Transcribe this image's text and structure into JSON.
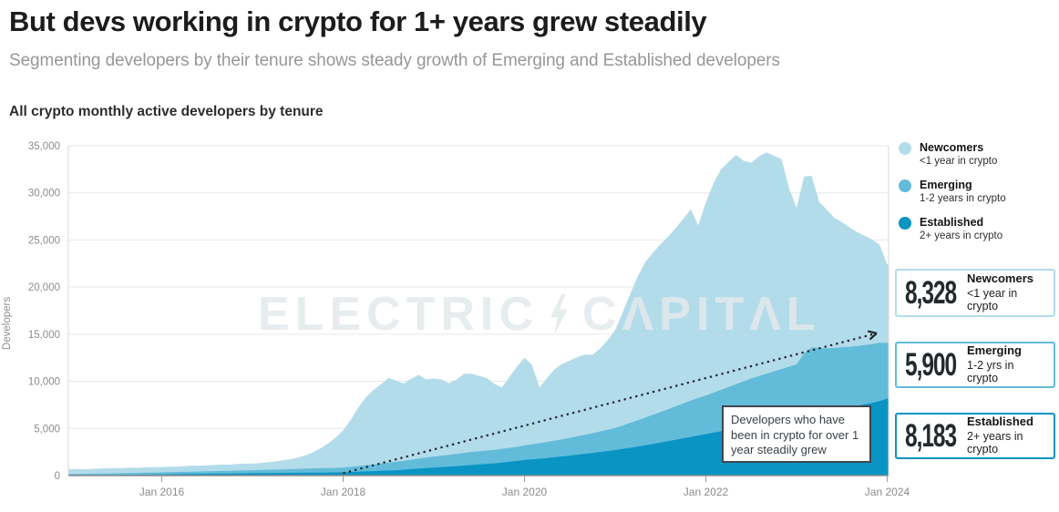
{
  "header": {
    "title": "But devs working in crypto for 1+ years grew steadily",
    "subtitle": "Segmenting developers by their tenure shows steady growth of Emerging and Established developers"
  },
  "watermark": {
    "word1": "ELECTRIC",
    "word2": "CΛPITΛL"
  },
  "legend": {
    "items": [
      {
        "label": "Newcomers",
        "sub": "<1 year in crypto"
      },
      {
        "label": "Emerging",
        "sub": "1-2 years in crypto"
      },
      {
        "label": "Established",
        "sub": "2+ years in crypto"
      }
    ]
  },
  "stats": {
    "boxes": [
      {
        "value": "8,328",
        "label": "Newcomers",
        "sub": "<1 year in crypto"
      },
      {
        "value": "5,900",
        "label": "Emerging",
        "sub": "1-2 yrs in crypto"
      },
      {
        "value": "8,183",
        "label": "Established",
        "sub": "2+ years in crypto"
      }
    ]
  },
  "chart_data": {
    "type": "area",
    "stacked": true,
    "title": "All crypto monthly active developers by tenure",
    "ylabel": "Developers",
    "xlabel": "",
    "x_start": "2015-01",
    "x_interval": "monthly",
    "months_total": 109,
    "ylim": [
      0,
      35000
    ],
    "grid": true,
    "legend_position": "right",
    "y_ticks": [
      0,
      5000,
      10000,
      15000,
      20000,
      25000,
      30000,
      35000
    ],
    "y_tick_labels": [
      "0",
      "5,000",
      "10,000",
      "15,000",
      "20,000",
      "25,000",
      "30,000",
      "35,000"
    ],
    "x_tick_labels": [
      "Jan 2016",
      "Jan 2018",
      "Jan 2020",
      "Jan 2022",
      "Jan 2024"
    ],
    "x_tick_month_index": [
      12,
      36,
      60,
      84,
      108
    ],
    "series": [
      {
        "name": "Established",
        "sub": "2+ years in crypto",
        "color": "#0a94c4",
        "latest": 8183,
        "values": [
          50,
          55,
          60,
          65,
          70,
          75,
          80,
          85,
          90,
          100,
          110,
          120,
          130,
          140,
          150,
          160,
          170,
          180,
          190,
          200,
          210,
          220,
          230,
          240,
          250,
          258,
          266,
          274,
          282,
          290,
          298,
          306,
          314,
          322,
          330,
          340,
          350,
          380,
          410,
          440,
          470,
          500,
          530,
          570,
          620,
          680,
          740,
          800,
          850,
          900,
          950,
          1000,
          1060,
          1120,
          1180,
          1240,
          1300,
          1380,
          1460,
          1550,
          1650,
          1720,
          1790,
          1870,
          1950,
          2030,
          2120,
          2210,
          2300,
          2400,
          2500,
          2600,
          2700,
          2820,
          2950,
          3080,
          3220,
          3360,
          3500,
          3650,
          3800,
          3950,
          4100,
          4250,
          4400,
          4550,
          4700,
          4850,
          5000,
          5150,
          5300,
          5450,
          5600,
          5750,
          5900,
          6050,
          6200,
          6350,
          6500,
          6650,
          6800,
          6950,
          7100,
          7250,
          7400,
          7550,
          7700,
          7900,
          8183
        ]
      },
      {
        "name": "Emerging",
        "sub": "1-2 years in crypto",
        "color": "#62bcd9",
        "latest": 5900,
        "values": [
          120,
          125,
          130,
          140,
          150,
          155,
          160,
          170,
          180,
          190,
          195,
          200,
          210,
          220,
          230,
          240,
          250,
          255,
          260,
          270,
          280,
          290,
          300,
          310,
          320,
          335,
          350,
          365,
          380,
          395,
          410,
          430,
          450,
          460,
          470,
          480,
          500,
          550,
          600,
          660,
          720,
          780,
          840,
          900,
          950,
          1000,
          1050,
          1100,
          1150,
          1200,
          1250,
          1300,
          1350,
          1380,
          1400,
          1420,
          1440,
          1460,
          1480,
          1500,
          1550,
          1600,
          1650,
          1700,
          1760,
          1820,
          1890,
          1960,
          2030,
          2100,
          2180,
          2260,
          2350,
          2500,
          2650,
          2800,
          2950,
          3100,
          3250,
          3400,
          3550,
          3700,
          3850,
          4000,
          4100,
          4250,
          4400,
          4550,
          4700,
          4850,
          5000,
          5100,
          5200,
          5300,
          5400,
          5500,
          5600,
          6600,
          7100,
          6900,
          6700,
          6600,
          6500,
          6400,
          6350,
          6300,
          6250,
          6200,
          5900
        ]
      },
      {
        "name": "Newcomers",
        "sub": "<1 year in crypto",
        "color": "#b3dcea",
        "latest": 8328,
        "values": [
          500,
          520,
          480,
          510,
          530,
          540,
          520,
          550,
          560,
          540,
          570,
          580,
          560,
          590,
          570,
          610,
          630,
          600,
          640,
          660,
          680,
          650,
          700,
          720,
          700,
          740,
          800,
          860,
          950,
          1050,
          1200,
          1400,
          1700,
          2100,
          2600,
          3200,
          3950,
          5000,
          6200,
          7200,
          7900,
          8400,
          9000,
          8600,
          8200,
          8600,
          8900,
          8300,
          8300,
          8100,
          7600,
          7900,
          8400,
          8300,
          8000,
          7700,
          7000,
          6500,
          7500,
          8500,
          9300,
          8400,
          5900,
          6800,
          7600,
          8000,
          8200,
          8400,
          8500,
          8300,
          8800,
          9500,
          10400,
          12000,
          13700,
          15300,
          16500,
          17200,
          17800,
          18300,
          18900,
          19600,
          20300,
          18300,
          20500,
          22200,
          23400,
          23900,
          24300,
          23400,
          22900,
          23300,
          23500,
          22900,
          22300,
          19000,
          16600,
          18800,
          18200,
          15500,
          14700,
          13800,
          13300,
          12700,
          12100,
          11600,
          11100,
          10400,
          8328
        ]
      }
    ],
    "trend_arrow": {
      "from_month_index": 36,
      "from_value": 250,
      "to_month_index": 106.6,
      "to_value": 15100,
      "color": "#20262b"
    },
    "annotation": "Developers who have been in crypto for over 1 year steadily grew"
  }
}
